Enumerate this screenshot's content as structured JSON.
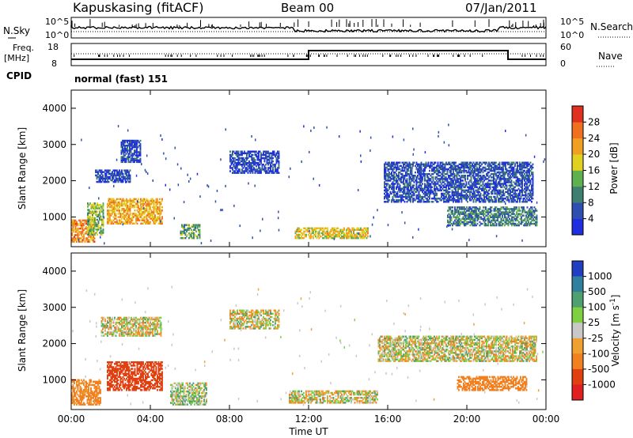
{
  "header": {
    "site": "Kapuskasing (fitACF)",
    "beam": "Beam 00",
    "date": "07/Jan/2011"
  },
  "noise_panel": {
    "left_label": "N.Sky",
    "right_label": "N.Search",
    "left_ticks": [
      "10^5",
      "10^0"
    ],
    "right_ticks": [
      "10^5",
      "10^0"
    ]
  },
  "freq_panel": {
    "left_label_line1": "Freq.",
    "left_label_line2": "[MHz]",
    "right_label": "Nave",
    "left_ticks": [
      "18",
      "8"
    ],
    "right_ticks": [
      "60",
      "0"
    ]
  },
  "cpid": {
    "label": "CPID",
    "value": "normal (fast) 151"
  },
  "colors": {
    "power_scale": [
      "#1f2fe0",
      "#2f4fb0",
      "#3f7f6f",
      "#5fb04f",
      "#e0d020",
      "#f0a020",
      "#f07020",
      "#e03020"
    ],
    "velocity_scale": [
      "#1f3fc0",
      "#2f7f9f",
      "#4fa06f",
      "#7fd040",
      "#c8c8c8",
      "#f0a030",
      "#f08020",
      "#e04010",
      "#e02020"
    ]
  },
  "chart_data": [
    {
      "type": "heatmap",
      "panel": "power",
      "xlabel": "",
      "ylabel": "Slant Range [km]",
      "y_ticks": [
        "1000",
        "2000",
        "3000",
        "4000"
      ],
      "x_ticks": [
        "00:00",
        "04:00",
        "08:00",
        "12:00",
        "16:00",
        "20:00",
        "00:00"
      ],
      "xlim": [
        0,
        24
      ],
      "ylim": [
        180,
        4500
      ],
      "colorbar": {
        "label": "Power [dB]",
        "ticks": [
          "4",
          "8",
          "12",
          "16",
          "20",
          "24",
          "28"
        ],
        "range": [
          0,
          30
        ]
      },
      "regions": [
        {
          "t": [
            0.0,
            1.2
          ],
          "r": [
            300,
            900
          ],
          "v": 22
        },
        {
          "t": [
            0.8,
            1.6
          ],
          "r": [
            500,
            1400
          ],
          "v": 14
        },
        {
          "t": [
            1.8,
            4.6
          ],
          "r": [
            800,
            1500
          ],
          "v": 20
        },
        {
          "t": [
            1.2,
            3.0
          ],
          "r": [
            1950,
            2300
          ],
          "v": 4
        },
        {
          "t": [
            2.5,
            3.5
          ],
          "r": [
            2500,
            3100
          ],
          "v": 4
        },
        {
          "t": [
            5.5,
            6.5
          ],
          "r": [
            400,
            800
          ],
          "v": 12
        },
        {
          "t": [
            8.0,
            10.5
          ],
          "r": [
            2200,
            2800
          ],
          "v": 4
        },
        {
          "t": [
            11.3,
            15.0
          ],
          "r": [
            400,
            700
          ],
          "v": 18
        },
        {
          "t": [
            15.8,
            23.3
          ],
          "r": [
            1400,
            2500
          ],
          "v": 5
        },
        {
          "t": [
            19.0,
            23.5
          ],
          "r": [
            750,
            1250
          ],
          "v": 9
        }
      ]
    },
    {
      "type": "heatmap",
      "panel": "velocity",
      "xlabel": "Time UT",
      "ylabel": "Slant Range [km]",
      "y_ticks": [
        "1000",
        "2000",
        "3000",
        "4000"
      ],
      "x_ticks": [
        "00:00",
        "04:00",
        "08:00",
        "12:00",
        "16:00",
        "20:00",
        "00:00"
      ],
      "xlim": [
        0,
        24
      ],
      "ylim": [
        180,
        4500
      ],
      "colorbar": {
        "label": "Velocity [m s^-1]",
        "ticks": [
          "1000",
          "500",
          "100",
          "25",
          "-25",
          "-100",
          "-500",
          "-1000"
        ]
      },
      "regions": [
        {
          "t": [
            0.0,
            1.5
          ],
          "r": [
            300,
            1000
          ],
          "v": -200
        },
        {
          "t": [
            1.8,
            4.6
          ],
          "r": [
            700,
            1500
          ],
          "v": -700
        },
        {
          "t": [
            1.5,
            4.5
          ],
          "r": [
            2200,
            2700
          ],
          "v": 0
        },
        {
          "t": [
            5.0,
            6.8
          ],
          "r": [
            300,
            900
          ],
          "v": 50
        },
        {
          "t": [
            8.0,
            10.5
          ],
          "r": [
            2400,
            2900
          ],
          "v": 0
        },
        {
          "t": [
            11.0,
            15.5
          ],
          "r": [
            350,
            700
          ],
          "v": 0
        },
        {
          "t": [
            15.5,
            23.5
          ],
          "r": [
            1500,
            2200
          ],
          "v": 0
        },
        {
          "t": [
            19.5,
            23.0
          ],
          "r": [
            700,
            1100
          ],
          "v": -300
        }
      ]
    }
  ]
}
